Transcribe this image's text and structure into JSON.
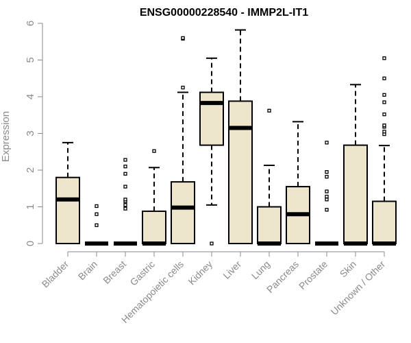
{
  "chart_data": {
    "type": "boxplot",
    "title": "ENSG00000228540 - IMMP2L-IT1",
    "ylabel": "Expression",
    "xlabel": "",
    "ylim": [
      0,
      6
    ],
    "yticks": [
      "0",
      "1",
      "2",
      "3",
      "4",
      "5",
      "6"
    ],
    "grid": false,
    "box_fill": "#ede6cc",
    "box_stroke": "#000000",
    "axis_color": "#8a8a8a",
    "categories": [
      "Bladder",
      "Brain",
      "Breast",
      "Gastric",
      "Hematopoietic cells",
      "Kidney",
      "Liver",
      "Lung",
      "Pancreas",
      "Prostate",
      "Skin",
      "Unknown / Other"
    ],
    "boxes": [
      {
        "min": 0,
        "q1": 0,
        "median": 1.2,
        "q3": 1.8,
        "max": 2.75,
        "outliers": []
      },
      {
        "min": 0,
        "q1": 0,
        "median": 0,
        "q3": 0,
        "max": 0,
        "outliers": [
          0.5,
          0.8,
          1.02
        ]
      },
      {
        "min": 0,
        "q1": 0,
        "median": 0,
        "q3": 0,
        "max": 0,
        "outliers": [
          0.95,
          1.05,
          1.15,
          1.2,
          1.55,
          1.9,
          2.1,
          2.28
        ]
      },
      {
        "min": 0,
        "q1": 0,
        "median": 0,
        "q3": 0.88,
        "max": 2.07,
        "outliers": [
          2.52
        ]
      },
      {
        "min": 0,
        "q1": 0,
        "median": 0.98,
        "q3": 1.68,
        "max": 4.12,
        "outliers": [
          4.25,
          5.58,
          5.6
        ]
      },
      {
        "min": 1.05,
        "q1": 2.68,
        "median": 3.83,
        "q3": 4.12,
        "max": 5.05,
        "outliers": [
          0
        ]
      },
      {
        "min": 0,
        "q1": 0,
        "median": 3.15,
        "q3": 3.88,
        "max": 5.82,
        "outliers": []
      },
      {
        "min": 0,
        "q1": 0,
        "median": 0,
        "q3": 1.0,
        "max": 2.13,
        "outliers": [
          3.62
        ]
      },
      {
        "min": 0,
        "q1": 0,
        "median": 0.8,
        "q3": 1.55,
        "max": 3.32,
        "outliers": []
      },
      {
        "min": 0,
        "q1": 0,
        "median": 0,
        "q3": 0,
        "max": 0,
        "outliers": [
          0.92,
          1.2,
          1.28,
          1.42,
          1.82,
          1.95,
          2.75
        ]
      },
      {
        "min": 0,
        "q1": 0,
        "median": 0,
        "q3": 2.68,
        "max": 4.33,
        "outliers": []
      },
      {
        "min": 0,
        "q1": 0,
        "median": 0,
        "q3": 1.15,
        "max": 2.67,
        "outliers": [
          2.98,
          3.05,
          3.18,
          3.22,
          3.52,
          3.85,
          4.05,
          4.5,
          5.05
        ]
      }
    ]
  }
}
